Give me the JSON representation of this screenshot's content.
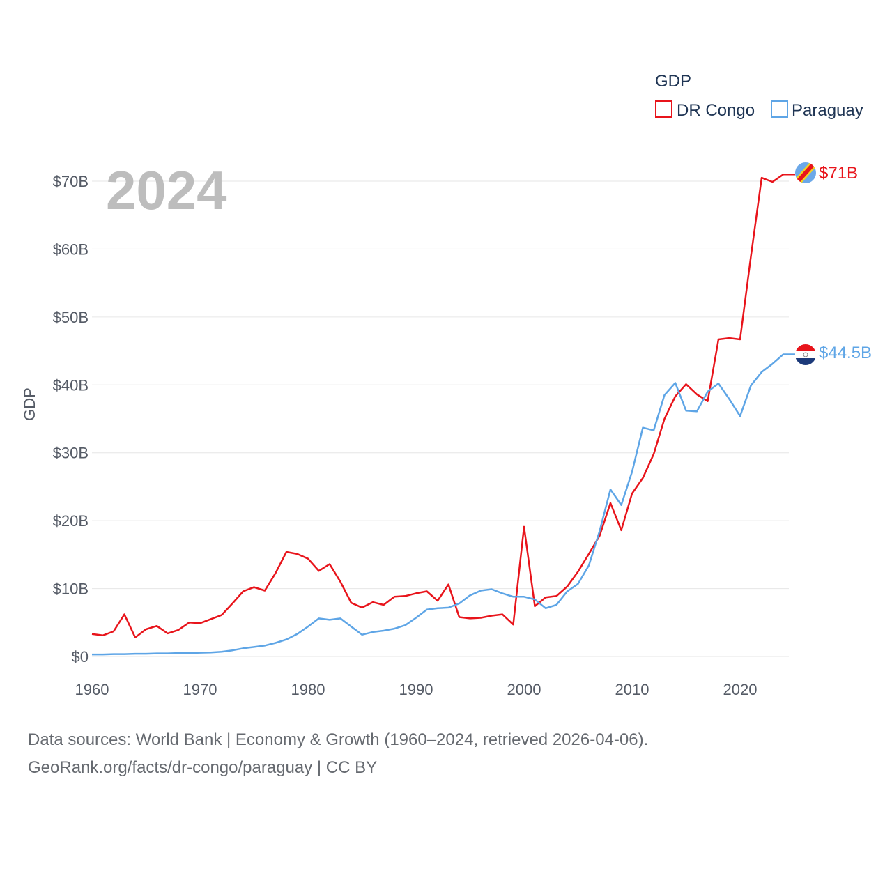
{
  "chart_data": {
    "type": "line",
    "title": "",
    "current_year_label": "2024",
    "ylabel": "GDP",
    "xlabel": "",
    "legend_title": "GDP",
    "legend_position": "top-right",
    "xlim": [
      1960,
      2024
    ],
    "ylim": [
      0,
      70
    ],
    "x_ticks": [
      1960,
      1970,
      1980,
      1990,
      2000,
      2010,
      2020
    ],
    "y_ticks": [
      0,
      10,
      20,
      30,
      40,
      50,
      60,
      70
    ],
    "y_tick_labels": [
      "$0",
      "$10B",
      "$20B",
      "$30B",
      "$40B",
      "$50B",
      "$60B",
      "$70B"
    ],
    "x": [
      1960,
      1961,
      1962,
      1963,
      1964,
      1965,
      1966,
      1967,
      1968,
      1969,
      1970,
      1971,
      1972,
      1973,
      1974,
      1975,
      1976,
      1977,
      1978,
      1979,
      1980,
      1981,
      1982,
      1983,
      1984,
      1985,
      1986,
      1987,
      1988,
      1989,
      1990,
      1991,
      1992,
      1993,
      1994,
      1995,
      1996,
      1997,
      1998,
      1999,
      2000,
      2001,
      2002,
      2003,
      2004,
      2005,
      2006,
      2007,
      2008,
      2009,
      2010,
      2011,
      2012,
      2013,
      2014,
      2015,
      2016,
      2017,
      2018,
      2019,
      2020,
      2021,
      2022,
      2023,
      2024
    ],
    "series": [
      {
        "name": "DR Congo",
        "color": "#e8141b",
        "end_label": "$71B",
        "values": [
          3.3,
          3.1,
          3.7,
          6.2,
          2.8,
          4.0,
          4.5,
          3.4,
          3.9,
          5.0,
          4.9,
          5.5,
          6.1,
          7.8,
          9.6,
          10.2,
          9.7,
          12.3,
          15.4,
          15.1,
          14.4,
          12.6,
          13.6,
          11.0,
          7.9,
          7.2,
          8.0,
          7.6,
          8.8,
          8.9,
          9.3,
          9.6,
          8.2,
          10.6,
          5.8,
          5.6,
          5.7,
          6.0,
          6.2,
          4.7,
          19.1,
          7.4,
          8.7,
          8.9,
          10.3,
          12.5,
          15.1,
          17.8,
          22.6,
          18.6,
          24.0,
          26.3,
          29.8,
          35.0,
          38.3,
          40.1,
          38.6,
          37.6,
          46.7,
          46.9,
          46.7,
          58.9,
          70.5,
          69.9,
          71.0
        ]
      },
      {
        "name": "Paraguay",
        "color": "#5ea5e6",
        "end_label": "$44.5B",
        "values": [
          0.3,
          0.3,
          0.35,
          0.35,
          0.4,
          0.4,
          0.45,
          0.45,
          0.5,
          0.5,
          0.55,
          0.6,
          0.7,
          0.9,
          1.2,
          1.4,
          1.6,
          2.0,
          2.5,
          3.3,
          4.4,
          5.6,
          5.4,
          5.6,
          4.4,
          3.2,
          3.6,
          3.8,
          4.1,
          4.6,
          5.7,
          6.9,
          7.1,
          7.2,
          7.8,
          9.0,
          9.7,
          9.9,
          9.3,
          8.8,
          8.8,
          8.4,
          7.1,
          7.6,
          9.6,
          10.7,
          13.4,
          18.5,
          24.6,
          22.3,
          27.2,
          33.7,
          33.3,
          38.5,
          40.3,
          36.2,
          36.1,
          39.0,
          40.2,
          37.9,
          35.4,
          39.9,
          41.9,
          43.1,
          44.5
        ]
      }
    ],
    "flags": [
      {
        "name": "dr-congo-flag-icon",
        "colors": [
          "#6ca8e8",
          "#e8141b",
          "#f4d21f"
        ]
      },
      {
        "name": "paraguay-flag-icon",
        "colors": [
          "#e8141b",
          "#ffffff",
          "#1c3a7a"
        ]
      }
    ]
  },
  "source": {
    "line1": "Data sources: World Bank | Economy & Growth (1960–2024, retrieved 2026-04-06).",
    "line2": "GeoRank.org/facts/dr-congo/paraguay | CC BY"
  }
}
